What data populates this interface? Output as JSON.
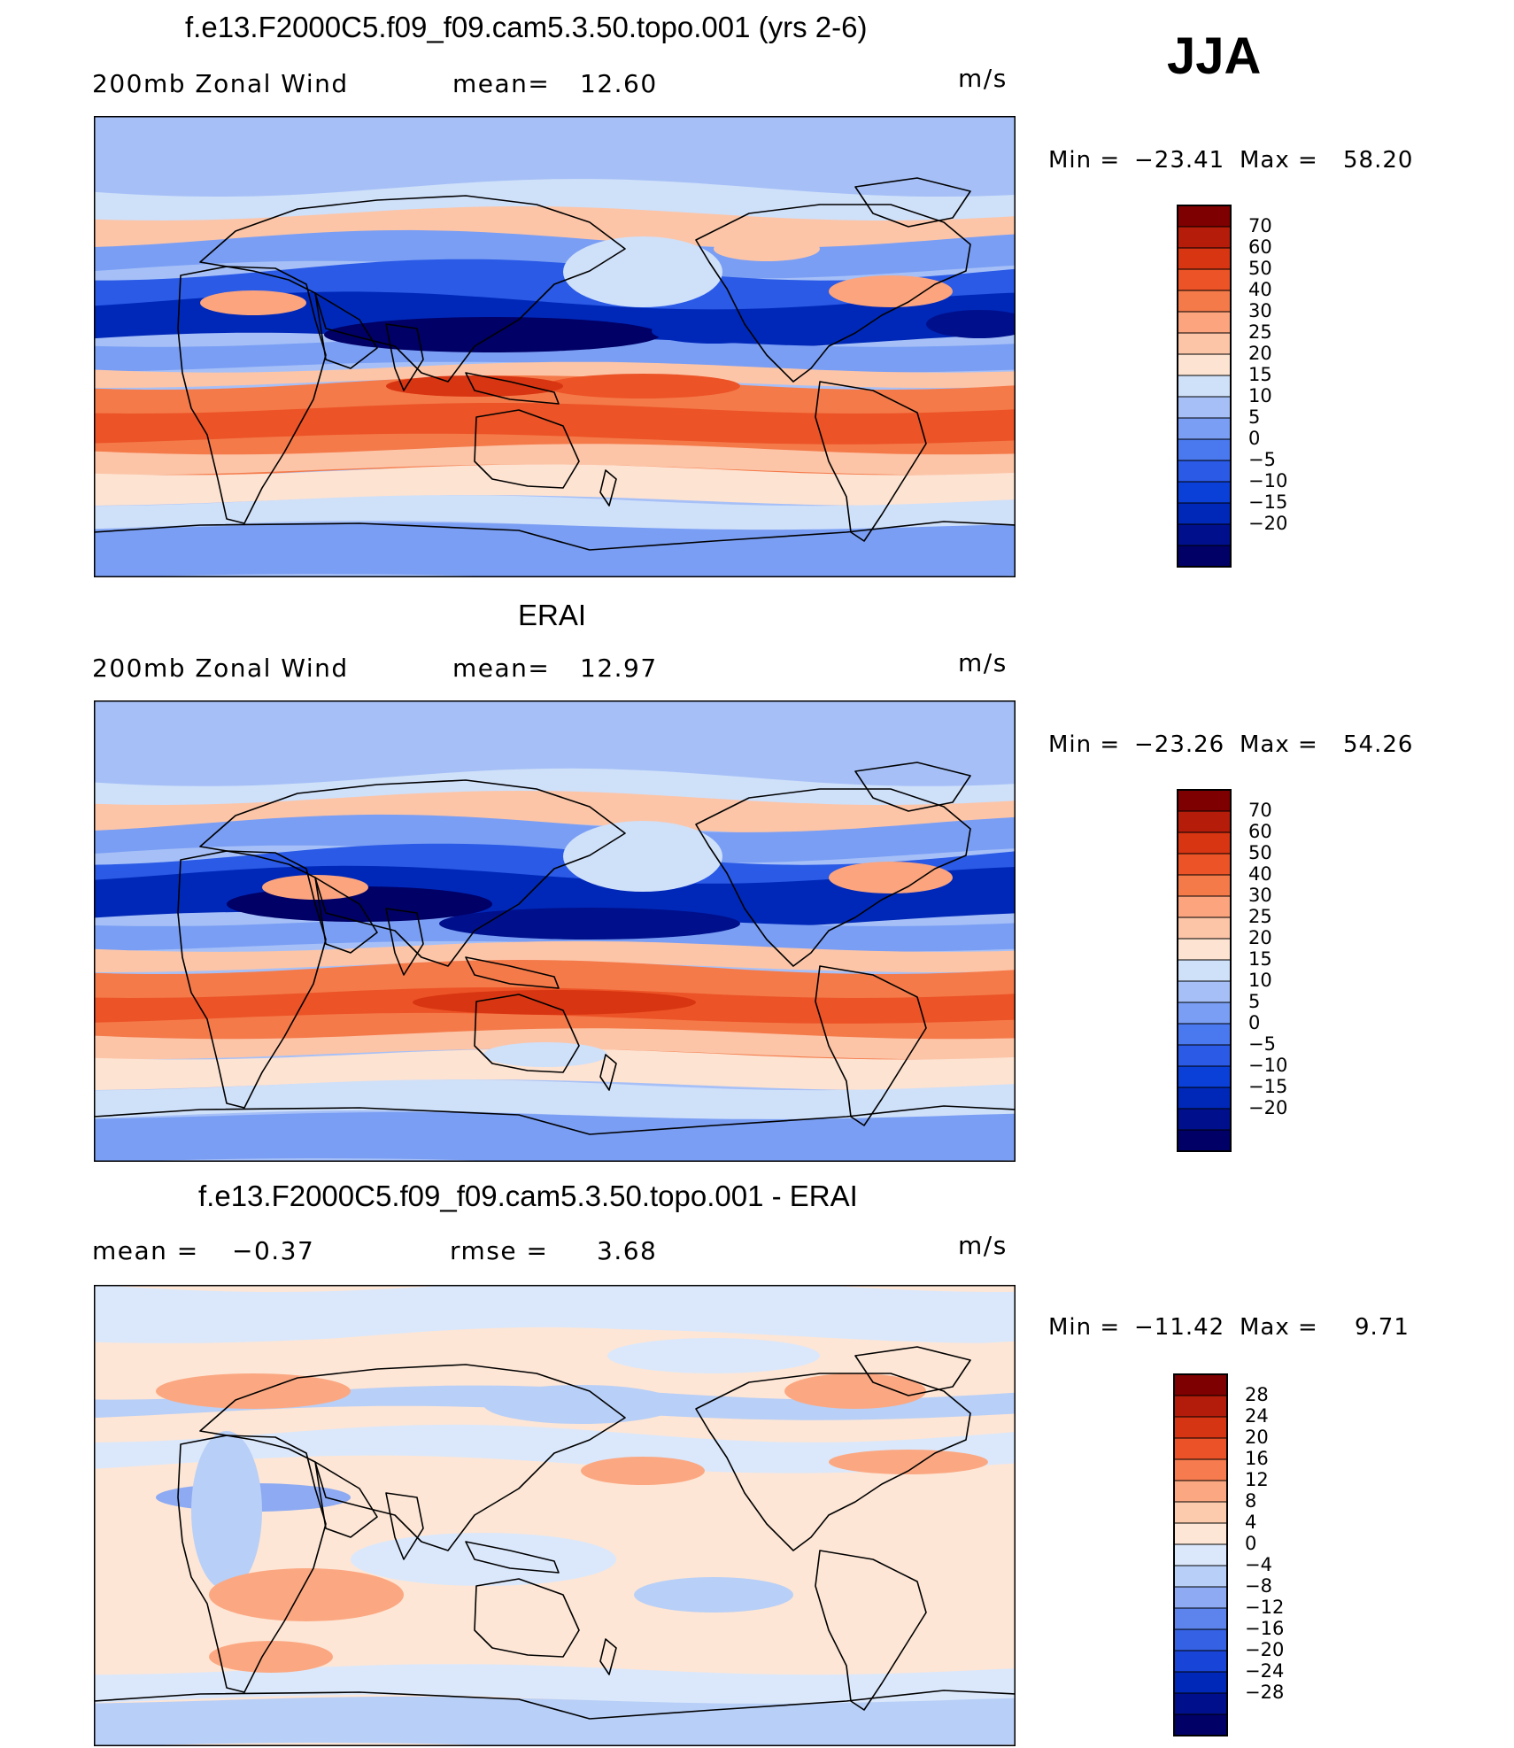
{
  "season": "JJA",
  "panels": [
    {
      "title": "f.e13.F2000C5.f09_f09.cam5.3.50.topo.001 (yrs 2-6)",
      "left_text": "200mb  Zonal  Wind",
      "stat_label": "mean=",
      "stat_value": "12.60",
      "stat2_label": "",
      "stat2_value": "",
      "units": "m/s",
      "min_label": "Min  =",
      "min_value": "−23.41",
      "max_label": "Max  =",
      "max_value": "58.20",
      "colorbar_labels": [
        "70",
        "60",
        "50",
        "40",
        "30",
        "25",
        "20",
        "15",
        "10",
        "5",
        "0",
        "−5",
        "−10",
        "−15",
        "−20"
      ]
    },
    {
      "title": "ERAI",
      "left_text": "200mb  Zonal  Wind",
      "stat_label": "mean=",
      "stat_value": "12.97",
      "stat2_label": "",
      "stat2_value": "",
      "units": "m/s",
      "min_label": "Min  =",
      "min_value": "−23.26",
      "max_label": "Max  =",
      "max_value": "54.26",
      "colorbar_labels": [
        "70",
        "60",
        "50",
        "40",
        "30",
        "25",
        "20",
        "15",
        "10",
        "5",
        "0",
        "−5",
        "−10",
        "−15",
        "−20"
      ]
    },
    {
      "title": "f.e13.F2000C5.f09_f09.cam5.3.50.topo.001 - ERAI",
      "left_text": "mean  =",
      "stat_label": "",
      "stat_value": "−0.37",
      "stat2_label": "rmse  =",
      "stat2_value": "3.68",
      "units": "m/s",
      "min_label": "Min  =",
      "min_value": "−11.42",
      "max_label": "Max  =",
      "max_value": "9.71",
      "colorbar_labels": [
        "28",
        "24",
        "20",
        "16",
        "12",
        "8",
        "4",
        "0",
        "−4",
        "−8",
        "−12",
        "−16",
        "−20",
        "−24",
        "−28"
      ]
    }
  ],
  "colors": {
    "abs_scale": [
      "#000066",
      "#00108c",
      "#0028b8",
      "#0a3fd8",
      "#2a5ae6",
      "#4a78ee",
      "#7a9ef4",
      "#a6c0f7",
      "#cfe0f9",
      "#fde3d2",
      "#fcc5a8",
      "#fba47e",
      "#f47a4a",
      "#ec5326",
      "#d83512",
      "#b51c0a",
      "#7f0000"
    ],
    "diff_scale": [
      "#000066",
      "#00108c",
      "#0028b8",
      "#1844d8",
      "#3562e4",
      "#5c84ec",
      "#8daaf2",
      "#b8cff7",
      "#dbe8fb",
      "#fde6d6",
      "#fccbae",
      "#fba882",
      "#f67c4f",
      "#ec5228",
      "#d63514",
      "#b31c0a",
      "#7f0000"
    ]
  }
}
